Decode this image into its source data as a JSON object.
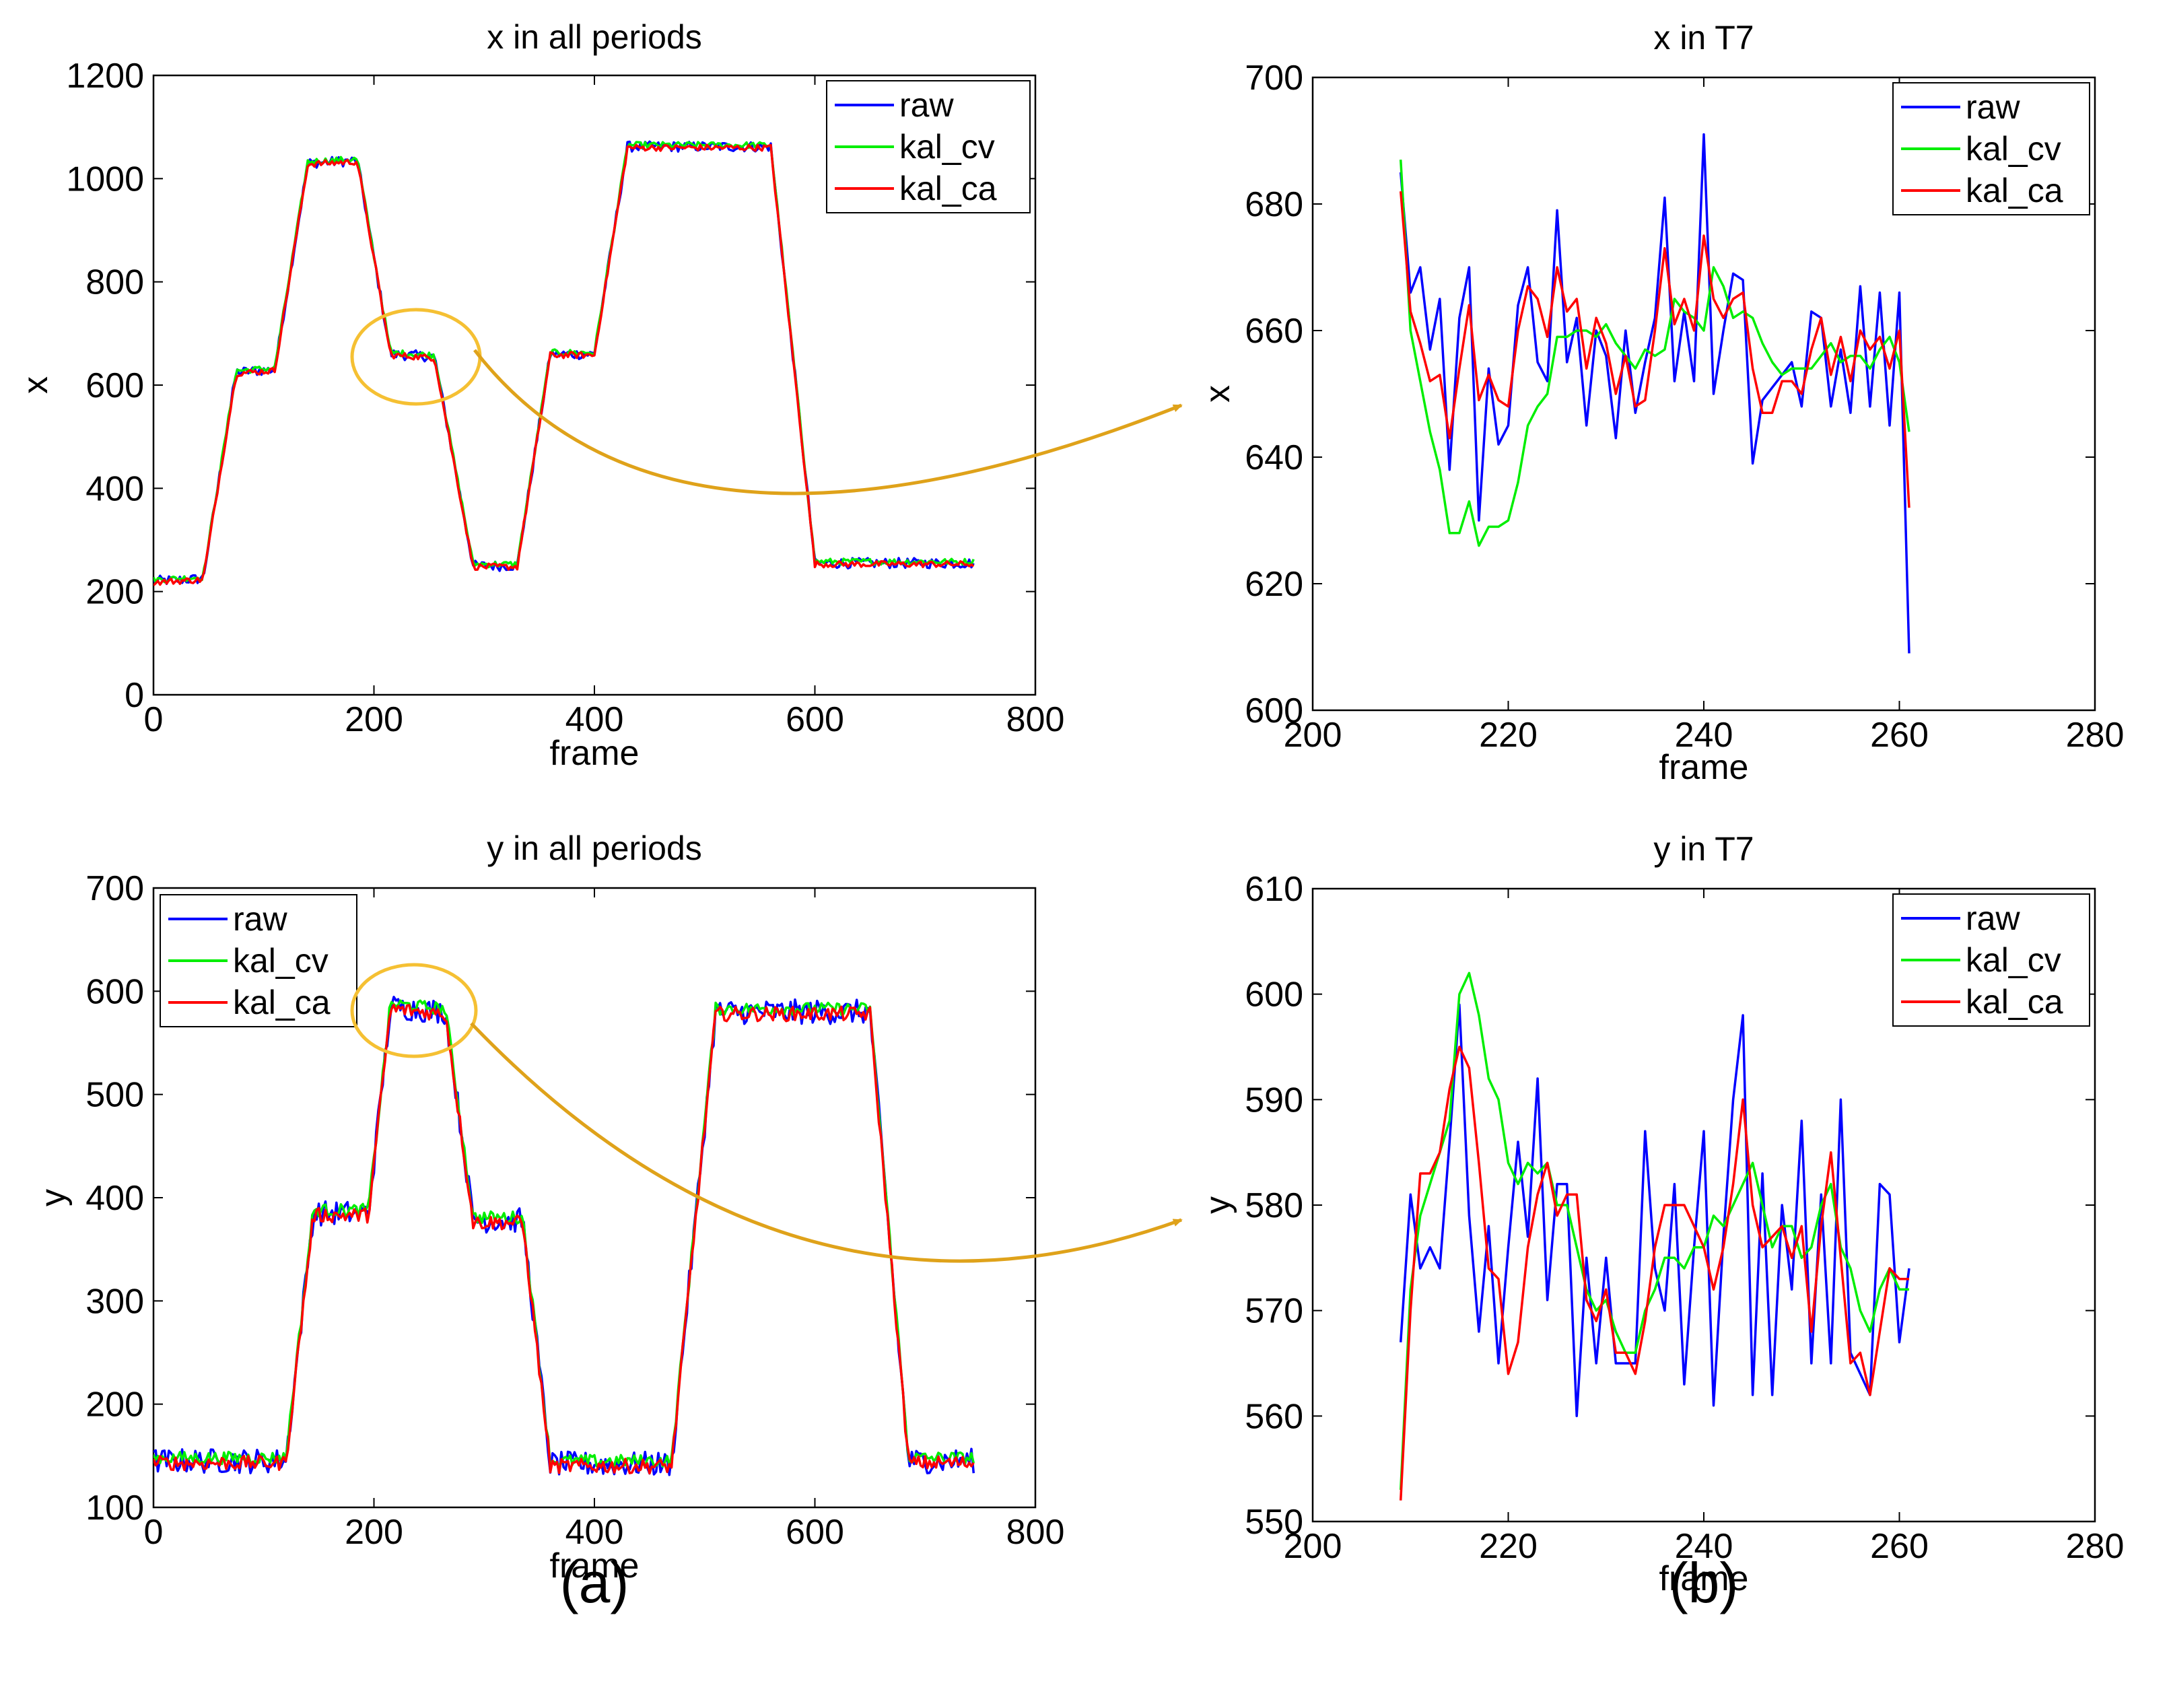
{
  "colors": {
    "raw": "#0000ff",
    "kal_cv": "#00ee00",
    "kal_ca": "#ff0000",
    "annotation": "#dfa21a",
    "ellipse": "#f5c033"
  },
  "captions": {
    "a": "(a)",
    "b": "(b)"
  },
  "chart_data": [
    {
      "id": "x_all",
      "type": "line",
      "title": "x in all periods",
      "xlabel": "frame",
      "ylabel": "x",
      "xlim": [
        0,
        800
      ],
      "ylim": [
        0,
        1200
      ],
      "xticks": [
        0,
        200,
        400,
        600,
        800
      ],
      "yticks": [
        0,
        200,
        400,
        600,
        800,
        1000,
        1200
      ],
      "legend": "top-right",
      "series_names": [
        "raw",
        "kal_cv",
        "kal_ca"
      ],
      "noise": [
        10,
        6,
        6
      ],
      "segments": [
        [
          0,
          220
        ],
        [
          45,
          225
        ],
        [
          75,
          625
        ],
        [
          110,
          630
        ],
        [
          140,
          1030
        ],
        [
          185,
          1035
        ],
        [
          215,
          660
        ],
        [
          255,
          655
        ],
        [
          290,
          250
        ],
        [
          330,
          250
        ],
        [
          360,
          660
        ],
        [
          400,
          660
        ],
        [
          430,
          1062
        ],
        [
          560,
          1062
        ],
        [
          600,
          255
        ],
        [
          745,
          255
        ]
      ]
    },
    {
      "id": "x_t7",
      "type": "line",
      "title": "x in T7",
      "xlabel": "frame",
      "ylabel": "x",
      "xlim": [
        200,
        280
      ],
      "ylim": [
        600,
        700
      ],
      "xticks": [
        200,
        220,
        240,
        260,
        280
      ],
      "yticks": [
        600,
        620,
        640,
        660,
        680,
        700
      ],
      "legend": "top-right",
      "x": [
        209,
        210,
        211,
        212,
        213,
        214,
        215,
        216,
        217,
        218,
        219,
        220,
        221,
        222,
        223,
        224,
        225,
        226,
        227,
        228,
        229,
        230,
        231,
        232,
        233,
        234,
        235,
        236,
        237,
        238,
        239,
        240,
        241,
        242,
        243,
        244,
        245,
        246,
        247,
        248,
        249,
        250,
        251,
        252,
        253,
        254,
        255,
        256,
        257,
        258,
        259,
        260,
        261
      ],
      "series": [
        {
          "name": "raw",
          "values": [
            685,
            666,
            670,
            657,
            665,
            638,
            662,
            670,
            630,
            654,
            642,
            645,
            664,
            670,
            655,
            652,
            679,
            655,
            662,
            645,
            660,
            656,
            643,
            660,
            647,
            655,
            662,
            681,
            652,
            663,
            652,
            691,
            650,
            660,
            669,
            668,
            639,
            649,
            651,
            653,
            655,
            648,
            663,
            662,
            648,
            657,
            647,
            667,
            648,
            666,
            645,
            666,
            609
          ]
        },
        {
          "name": "kal_cv",
          "values": [
            687,
            660,
            652,
            644,
            638,
            628,
            628,
            633,
            626,
            629,
            629,
            630,
            636,
            645,
            648,
            650,
            659,
            659,
            660,
            660,
            659,
            661,
            658,
            656,
            654,
            657,
            656,
            657,
            665,
            663,
            662,
            660,
            670,
            667,
            662,
            663,
            662,
            658,
            655,
            653,
            654,
            654,
            654,
            656,
            658,
            655,
            656,
            656,
            654,
            657,
            659,
            655,
            644
          ]
        },
        {
          "name": "kal_ca",
          "values": [
            682,
            663,
            658,
            652,
            653,
            643,
            654,
            664,
            649,
            653,
            649,
            648,
            660,
            667,
            665,
            659,
            670,
            663,
            665,
            654,
            662,
            658,
            650,
            656,
            648,
            649,
            660,
            673,
            661,
            665,
            660,
            675,
            665,
            662,
            665,
            666,
            654,
            647,
            647,
            652,
            652,
            650,
            657,
            662,
            653,
            659,
            652,
            660,
            657,
            659,
            654,
            660,
            632
          ]
        }
      ]
    },
    {
      "id": "y_all",
      "type": "line",
      "title": "y in all periods",
      "xlabel": "frame",
      "ylabel": "y",
      "xlim": [
        0,
        800
      ],
      "ylim": [
        100,
        700
      ],
      "xticks": [
        0,
        200,
        400,
        600,
        800
      ],
      "yticks": [
        100,
        200,
        300,
        400,
        500,
        600,
        700
      ],
      "legend": "top-left",
      "series_names": [
        "raw",
        "kal_cv",
        "kal_ca"
      ],
      "noise": [
        12,
        6,
        7
      ],
      "segments": [
        [
          0,
          145
        ],
        [
          120,
          145
        ],
        [
          145,
          385
        ],
        [
          195,
          385
        ],
        [
          215,
          585
        ],
        [
          265,
          580
        ],
        [
          290,
          378
        ],
        [
          335,
          378
        ],
        [
          360,
          142
        ],
        [
          470,
          142
        ],
        [
          510,
          580
        ],
        [
          650,
          580
        ],
        [
          685,
          145
        ],
        [
          745,
          145
        ]
      ]
    },
    {
      "id": "y_t7",
      "type": "line",
      "title": "y in T7",
      "xlabel": "frame",
      "ylabel": "y",
      "xlim": [
        200,
        280
      ],
      "ylim": [
        550,
        610
      ],
      "xticks": [
        200,
        220,
        240,
        260,
        280
      ],
      "yticks": [
        550,
        560,
        570,
        580,
        590,
        600,
        610
      ],
      "legend": "top-right",
      "x": [
        209,
        210,
        211,
        212,
        213,
        214,
        215,
        216,
        217,
        218,
        219,
        220,
        221,
        222,
        223,
        224,
        225,
        226,
        227,
        228,
        229,
        230,
        231,
        232,
        233,
        234,
        235,
        236,
        237,
        238,
        239,
        240,
        241,
        242,
        243,
        244,
        245,
        246,
        247,
        248,
        249,
        250,
        251,
        252,
        253,
        254,
        255,
        256,
        257,
        258,
        259,
        260,
        261
      ],
      "series": [
        {
          "name": "raw",
          "values": [
            567,
            581,
            574,
            576,
            574,
            586,
            599,
            579,
            568,
            578,
            565,
            576,
            586,
            577,
            592,
            571,
            582,
            582,
            560,
            575,
            565,
            575,
            565,
            565,
            565,
            587,
            574,
            570,
            582,
            563,
            576,
            587,
            561,
            577,
            590,
            598,
            562,
            583,
            562,
            580,
            572,
            588,
            565,
            581,
            565,
            590,
            566,
            564,
            562,
            582,
            581,
            567,
            574
          ]
        },
        {
          "name": "kal_cv",
          "values": [
            553,
            572,
            579,
            582,
            585,
            588,
            600,
            602,
            598,
            592,
            590,
            584,
            582,
            584,
            583,
            584,
            580,
            580,
            576,
            572,
            570,
            571,
            568,
            566,
            566,
            570,
            572,
            575,
            575,
            574,
            576,
            576,
            579,
            578,
            580,
            582,
            584,
            580,
            576,
            578,
            578,
            575,
            576,
            580,
            582,
            576,
            574,
            570,
            568,
            572,
            574,
            572,
            572
          ]
        },
        {
          "name": "kal_ca",
          "values": [
            552,
            570,
            583,
            583,
            585,
            591,
            595,
            593,
            584,
            574,
            573,
            564,
            567,
            576,
            581,
            584,
            579,
            581,
            581,
            571,
            569,
            572,
            566,
            566,
            564,
            569,
            576,
            580,
            580,
            580,
            578,
            576,
            572,
            576,
            582,
            590,
            580,
            576,
            577,
            578,
            575,
            578,
            568,
            578,
            585,
            575,
            565,
            566,
            562,
            568,
            574,
            573,
            573
          ]
        }
      ]
    }
  ]
}
